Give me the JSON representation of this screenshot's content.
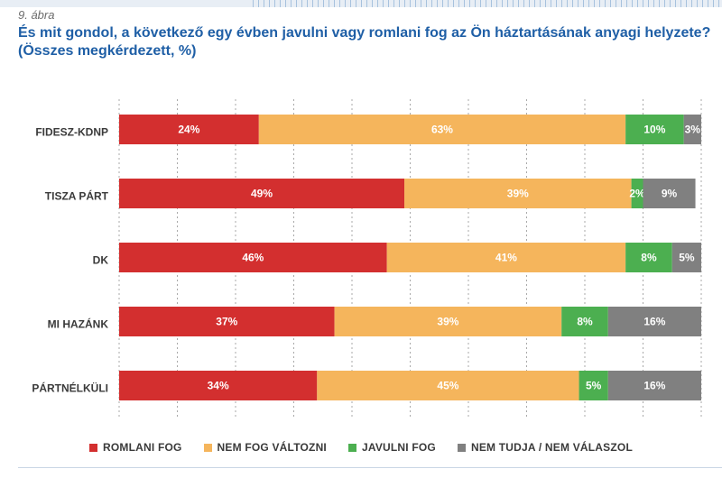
{
  "figure_label": "9. ábra",
  "title": "És mit gondol, a következő egy évben javulni vagy romlani fog az Ön háztartásának anyagi helyzete? (Összes megkérdezett, %)",
  "chart_data": {
    "type": "bar",
    "orientation": "horizontal",
    "stacked": true,
    "categories": [
      "FIDESZ-KDNP",
      "TISZA PÁRT",
      "DK",
      "MI HAZÁNK",
      "PÁRTNÉLKÜLI"
    ],
    "series": [
      {
        "name": "ROMLANI FOG",
        "color": "#d32f2f",
        "values": [
          24,
          49,
          46,
          37,
          34
        ],
        "labels": [
          "24%",
          "49%",
          "46%",
          "37%",
          "34%"
        ]
      },
      {
        "name": "NEM FOG VÁLTOZNI",
        "color": "#f5b55c",
        "values": [
          63,
          39,
          41,
          39,
          45
        ],
        "labels": [
          "63%",
          "39%",
          "41%",
          "39%",
          "45%"
        ]
      },
      {
        "name": "JAVULNI FOG",
        "color": "#4caf50",
        "values": [
          10,
          2,
          8,
          8,
          5
        ],
        "labels": [
          "10%",
          "2%",
          "8%",
          "8%",
          "5%"
        ]
      },
      {
        "name": "NEM TUDJA / NEM VÁLASZOL",
        "color": "#808080",
        "values": [
          3,
          9,
          5,
          16,
          16
        ],
        "labels": [
          "3%",
          "9%",
          "5%",
          "16%",
          "16%"
        ]
      }
    ],
    "xlim": [
      0,
      100
    ],
    "grid": true,
    "legend_position": "bottom"
  }
}
